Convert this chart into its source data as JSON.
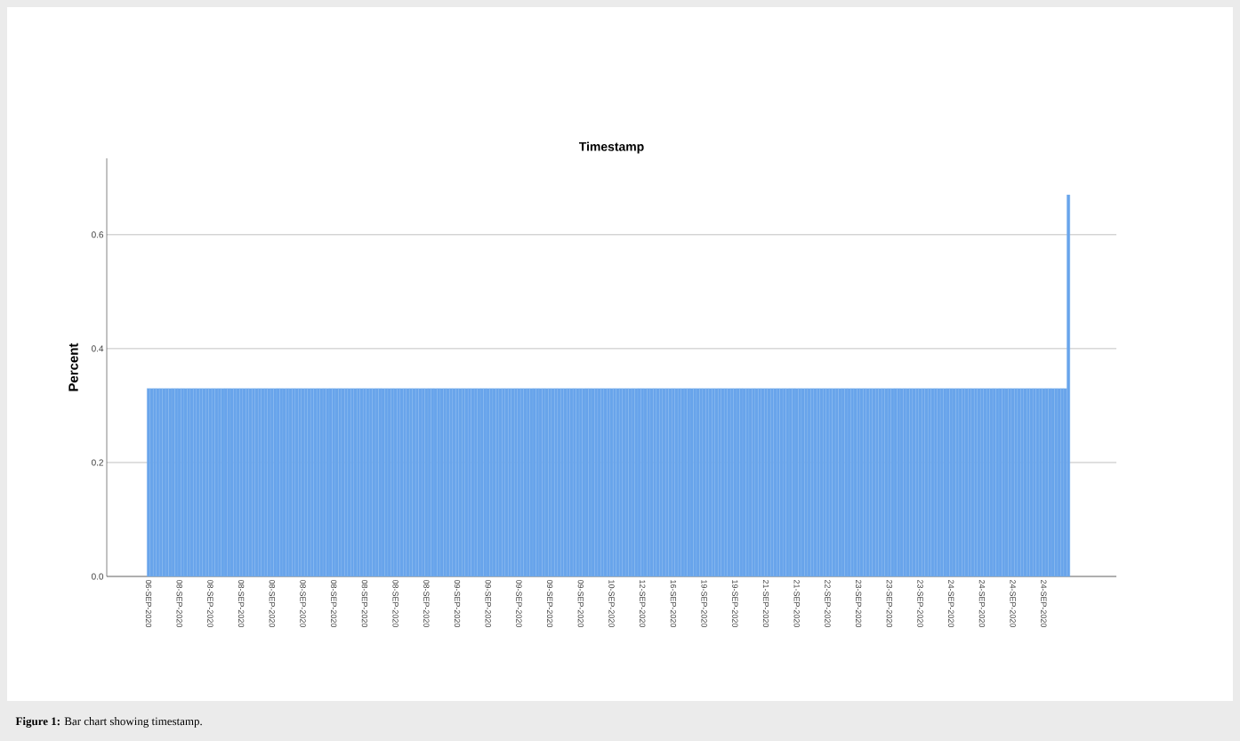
{
  "chart_data": {
    "type": "bar",
    "title": "Timestamp",
    "ylabel": "Percent",
    "categories": [
      "06-SEP-2020",
      null,
      null,
      null,
      null,
      null,
      null,
      null,
      null,
      null,
      "08-SEP-2020",
      null,
      null,
      null,
      null,
      null,
      null,
      null,
      null,
      null,
      "08-SEP-2020",
      null,
      null,
      null,
      null,
      null,
      null,
      null,
      null,
      null,
      "08-SEP-2020",
      null,
      null,
      null,
      null,
      null,
      null,
      null,
      null,
      null,
      "08-SEP-2020",
      null,
      null,
      null,
      null,
      null,
      null,
      null,
      null,
      null,
      "08-SEP-2020",
      null,
      null,
      null,
      null,
      null,
      null,
      null,
      null,
      null,
      "08-SEP-2020",
      null,
      null,
      null,
      null,
      null,
      null,
      null,
      null,
      null,
      "08-SEP-2020",
      null,
      null,
      null,
      null,
      null,
      null,
      null,
      null,
      null,
      "08-SEP-2020",
      null,
      null,
      null,
      null,
      null,
      null,
      null,
      null,
      null,
      "08-SEP-2020",
      null,
      null,
      null,
      null,
      null,
      null,
      null,
      null,
      null,
      "09-SEP-2020",
      null,
      null,
      null,
      null,
      null,
      null,
      null,
      null,
      null,
      "09-SEP-2020",
      null,
      null,
      null,
      null,
      null,
      null,
      null,
      null,
      null,
      "09-SEP-2020",
      null,
      null,
      null,
      null,
      null,
      null,
      null,
      null,
      null,
      "09-SEP-2020",
      null,
      null,
      null,
      null,
      null,
      null,
      null,
      null,
      null,
      "09-SEP-2020",
      null,
      null,
      null,
      null,
      null,
      null,
      null,
      null,
      null,
      "10-SEP-2020",
      null,
      null,
      null,
      null,
      null,
      null,
      null,
      null,
      null,
      "12-SEP-2020",
      null,
      null,
      null,
      null,
      null,
      null,
      null,
      null,
      null,
      "16-SEP-2020",
      null,
      null,
      null,
      null,
      null,
      null,
      null,
      null,
      null,
      "19-SEP-2020",
      null,
      null,
      null,
      null,
      null,
      null,
      null,
      null,
      null,
      "19-SEP-2020",
      null,
      null,
      null,
      null,
      null,
      null,
      null,
      null,
      null,
      "21-SEP-2020",
      null,
      null,
      null,
      null,
      null,
      null,
      null,
      null,
      null,
      "21-SEP-2020",
      null,
      null,
      null,
      null,
      null,
      null,
      null,
      null,
      null,
      "22-SEP-2020",
      null,
      null,
      null,
      null,
      null,
      null,
      null,
      null,
      null,
      "23-SEP-2020",
      null,
      null,
      null,
      null,
      null,
      null,
      null,
      null,
      null,
      "23-SEP-2020",
      null,
      null,
      null,
      null,
      null,
      null,
      null,
      null,
      null,
      "23-SEP-2020",
      null,
      null,
      null,
      null,
      null,
      null,
      null,
      null,
      null,
      "24-SEP-2020",
      null,
      null,
      null,
      null,
      null,
      null,
      null,
      null,
      null,
      "24-SEP-2020",
      null,
      null,
      null,
      null,
      null,
      null,
      null,
      null,
      null,
      "24-SEP-2020",
      null,
      null,
      null,
      null,
      null,
      null,
      null,
      null,
      null,
      "24-SEP-2020",
      null,
      null,
      null,
      null,
      null,
      null,
      null,
      null
    ],
    "values": [
      0.33,
      0.33,
      0.33,
      0.33,
      0.33,
      0.33,
      0.33,
      0.33,
      0.33,
      0.33,
      0.33,
      0.33,
      0.33,
      0.33,
      0.33,
      0.33,
      0.33,
      0.33,
      0.33,
      0.33,
      0.33,
      0.33,
      0.33,
      0.33,
      0.33,
      0.33,
      0.33,
      0.33,
      0.33,
      0.33,
      0.33,
      0.33,
      0.33,
      0.33,
      0.33,
      0.33,
      0.33,
      0.33,
      0.33,
      0.33,
      0.33,
      0.33,
      0.33,
      0.33,
      0.33,
      0.33,
      0.33,
      0.33,
      0.33,
      0.33,
      0.33,
      0.33,
      0.33,
      0.33,
      0.33,
      0.33,
      0.33,
      0.33,
      0.33,
      0.33,
      0.33,
      0.33,
      0.33,
      0.33,
      0.33,
      0.33,
      0.33,
      0.33,
      0.33,
      0.33,
      0.33,
      0.33,
      0.33,
      0.33,
      0.33,
      0.33,
      0.33,
      0.33,
      0.33,
      0.33,
      0.33,
      0.33,
      0.33,
      0.33,
      0.33,
      0.33,
      0.33,
      0.33,
      0.33,
      0.33,
      0.33,
      0.33,
      0.33,
      0.33,
      0.33,
      0.33,
      0.33,
      0.33,
      0.33,
      0.33,
      0.33,
      0.33,
      0.33,
      0.33,
      0.33,
      0.33,
      0.33,
      0.33,
      0.33,
      0.33,
      0.33,
      0.33,
      0.33,
      0.33,
      0.33,
      0.33,
      0.33,
      0.33,
      0.33,
      0.33,
      0.33,
      0.33,
      0.33,
      0.33,
      0.33,
      0.33,
      0.33,
      0.33,
      0.33,
      0.33,
      0.33,
      0.33,
      0.33,
      0.33,
      0.33,
      0.33,
      0.33,
      0.33,
      0.33,
      0.33,
      0.33,
      0.33,
      0.33,
      0.33,
      0.33,
      0.33,
      0.33,
      0.33,
      0.33,
      0.33,
      0.33,
      0.33,
      0.33,
      0.33,
      0.33,
      0.33,
      0.33,
      0.33,
      0.33,
      0.33,
      0.33,
      0.33,
      0.33,
      0.33,
      0.33,
      0.33,
      0.33,
      0.33,
      0.33,
      0.33,
      0.33,
      0.33,
      0.33,
      0.33,
      0.33,
      0.33,
      0.33,
      0.33,
      0.33,
      0.33,
      0.33,
      0.33,
      0.33,
      0.33,
      0.33,
      0.33,
      0.33,
      0.33,
      0.33,
      0.33,
      0.33,
      0.33,
      0.33,
      0.33,
      0.33,
      0.33,
      0.33,
      0.33,
      0.33,
      0.33,
      0.33,
      0.33,
      0.33,
      0.33,
      0.33,
      0.33,
      0.33,
      0.33,
      0.33,
      0.33,
      0.33,
      0.33,
      0.33,
      0.33,
      0.33,
      0.33,
      0.33,
      0.33,
      0.33,
      0.33,
      0.33,
      0.33,
      0.33,
      0.33,
      0.33,
      0.33,
      0.33,
      0.33,
      0.33,
      0.33,
      0.33,
      0.33,
      0.33,
      0.33,
      0.33,
      0.33,
      0.33,
      0.33,
      0.33,
      0.33,
      0.33,
      0.33,
      0.33,
      0.33,
      0.33,
      0.33,
      0.33,
      0.33,
      0.33,
      0.33,
      0.33,
      0.33,
      0.33,
      0.33,
      0.33,
      0.33,
      0.33,
      0.33,
      0.33,
      0.33,
      0.33,
      0.33,
      0.33,
      0.33,
      0.33,
      0.33,
      0.33,
      0.33,
      0.33,
      0.33,
      0.33,
      0.33,
      0.33,
      0.33,
      0.33,
      0.33,
      0.33,
      0.33,
      0.33,
      0.33,
      0.33,
      0.33,
      0.33,
      0.33,
      0.33,
      0.33,
      0.33,
      0.33,
      0.33,
      0.33,
      0.33,
      0.33,
      0.33,
      0.33,
      0.33,
      0.33,
      0.33,
      0.33,
      0.67
    ],
    "color": "#68a4eb",
    "ylim": [
      0,
      0.734
    ],
    "yticks": [
      {
        "value": 0,
        "label": "0.0"
      },
      0.2,
      0.4,
      0.6
    ],
    "grid": "y",
    "annotations": [
      "**Figure 1:** Bar chart showing timestamp."
    ]
  }
}
